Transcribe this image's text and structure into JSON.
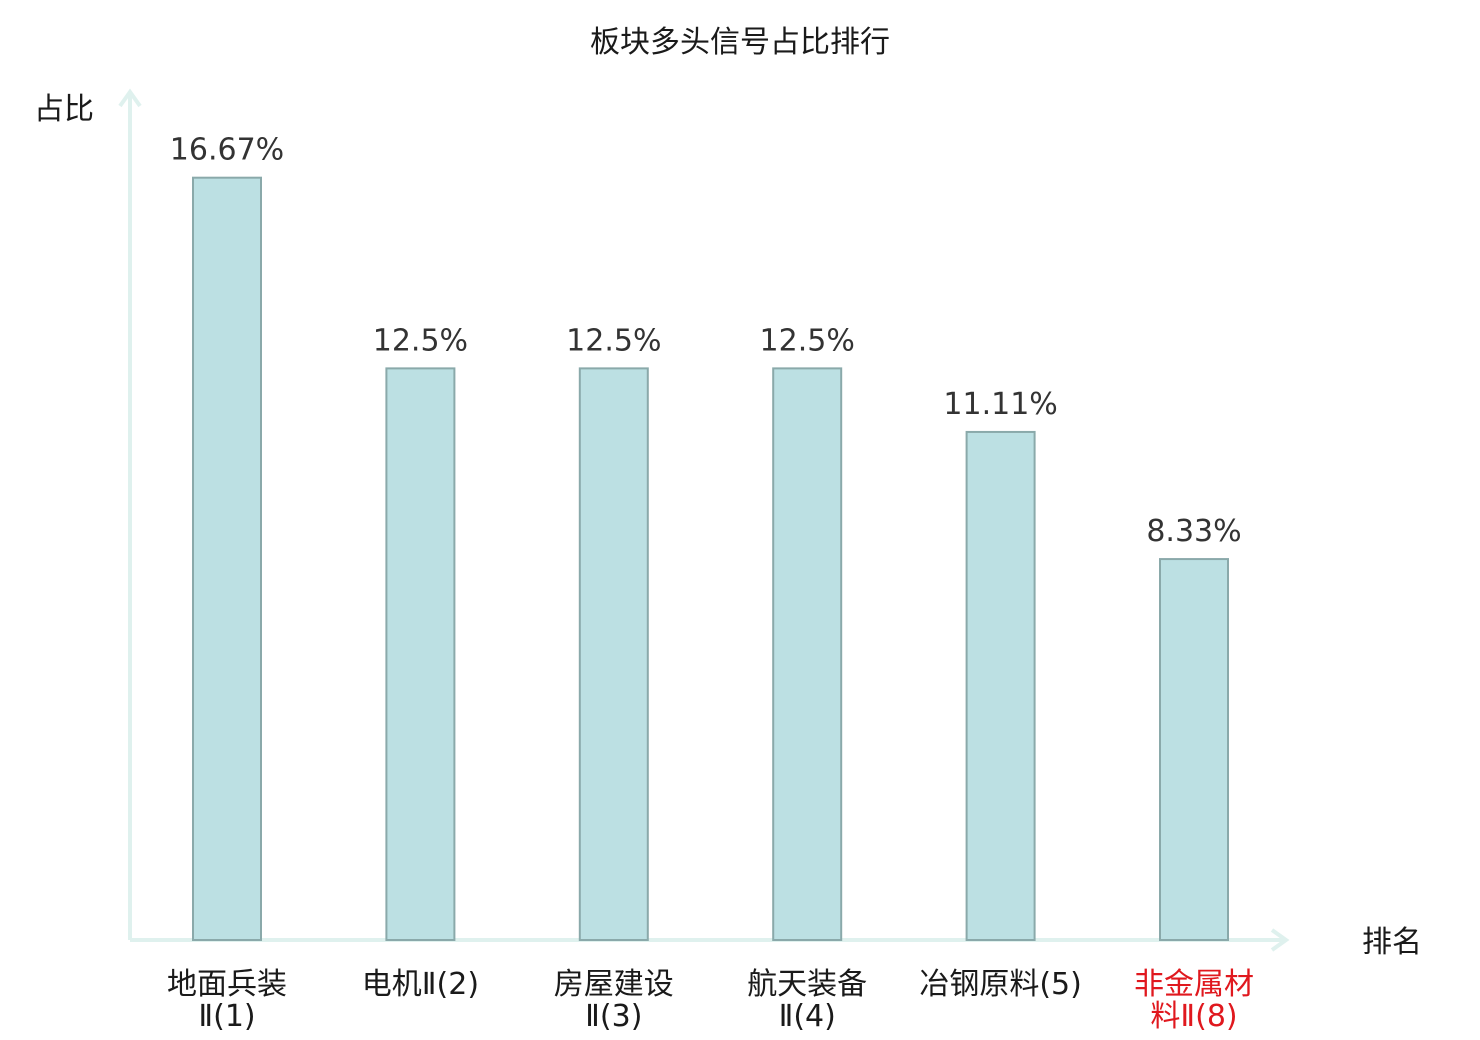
{
  "chart_data": {
    "type": "bar",
    "title": "板块多头信号占比排行",
    "ylabel": "占比",
    "xlabel": "排名",
    "ylim": [
      0,
      18.5
    ],
    "grid": false,
    "categories": [
      [
        "地面兵装",
        "Ⅱ(1)"
      ],
      [
        "电机Ⅱ(2)"
      ],
      [
        "房屋建设",
        "Ⅱ(3)"
      ],
      [
        "航天装备",
        "Ⅱ(4)"
      ],
      [
        "冶钢原料(5)"
      ],
      [
        "非金属材",
        "料Ⅱ(8)"
      ]
    ],
    "values": [
      16.67,
      12.5,
      12.5,
      12.5,
      11.11,
      8.33
    ],
    "value_labels": [
      "16.67%",
      "12.5%",
      "12.5%",
      "12.5%",
      "11.11%",
      "8.33%"
    ],
    "highlight_index": 5,
    "colors": {
      "bar_fill": "#bce0e3",
      "bar_stroke": "#8aa9aa",
      "axis": "#dff1ee",
      "highlight_text": "#e0181e"
    }
  }
}
